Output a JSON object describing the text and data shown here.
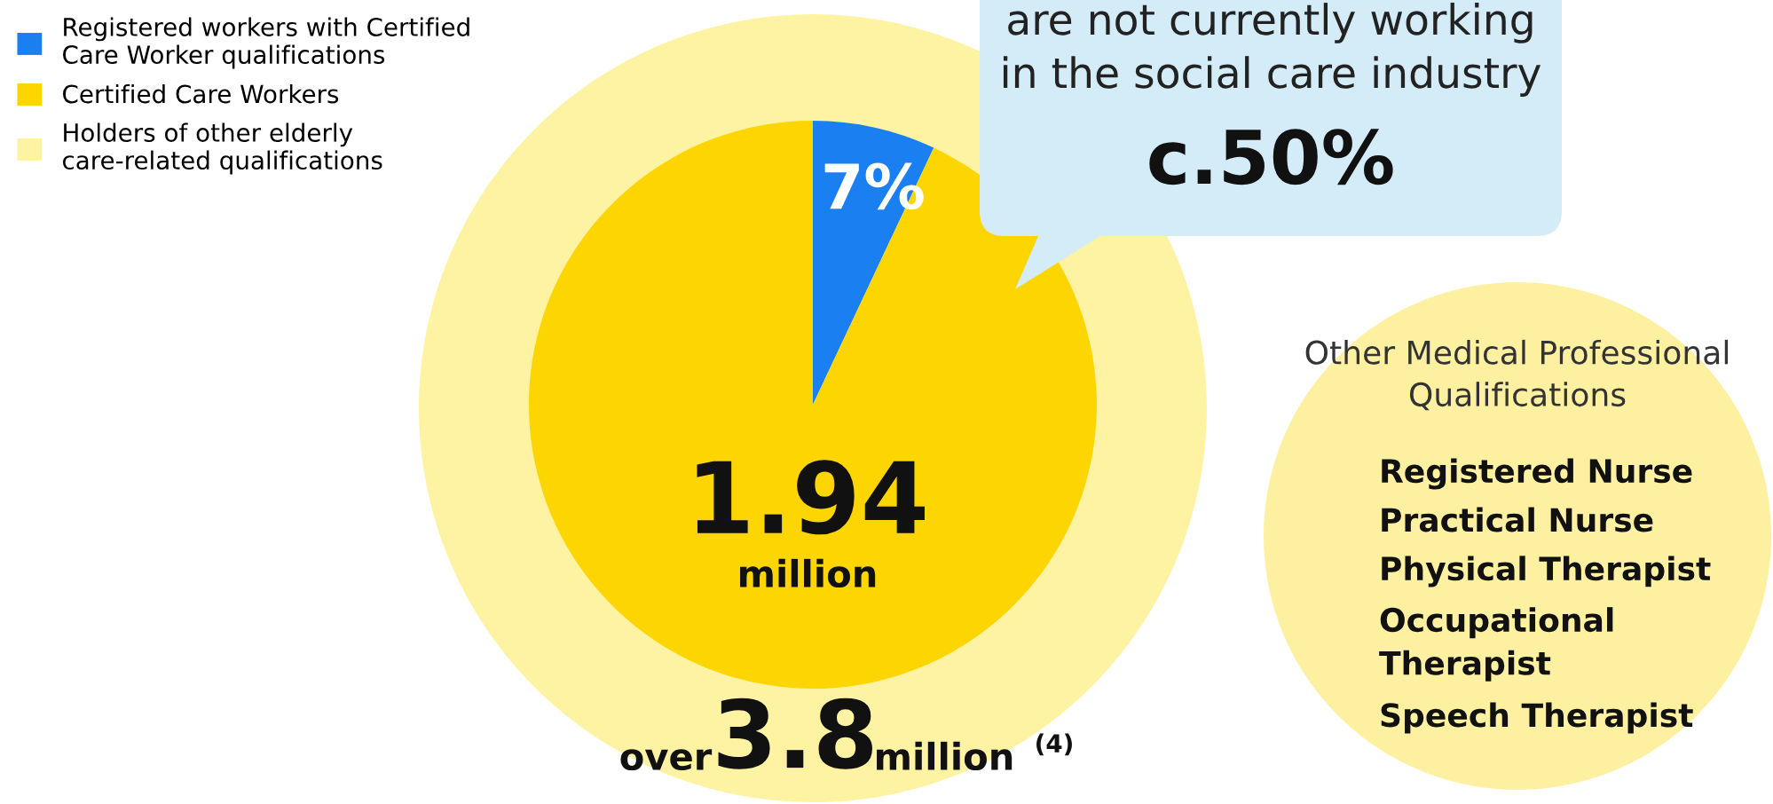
{
  "chart_data": [
    {
      "type": "pie",
      "categories": [
        "Registered workers with Certified\nCare Worker qualifications",
        "Certified Care Workers",
        "Holders of other elderly\ncare-related qualifications"
      ],
      "values": [
        7,
        93,
        null
      ],
      "colors": [
        "#1a7ff0",
        "#fdd500",
        "#fef3a2"
      ],
      "value_labels": [
        "7%",
        null,
        null
      ],
      "legend": "top left",
      "annotations": [
        "are not currently working\nin the social care industry",
        "c.50%",
        "1.94",
        "million",
        "over",
        "3.8",
        "million",
        "(4)"
      ]
    },
    {
      "type": "other",
      "title": "Other Medical Professional\nQualifications",
      "annotations": [
        "Registered Nurse",
        "Practical Nurse",
        "Physical Therapist",
        "Occupational\nTherapist",
        "Speech Therapist"
      ]
    }
  ]
}
